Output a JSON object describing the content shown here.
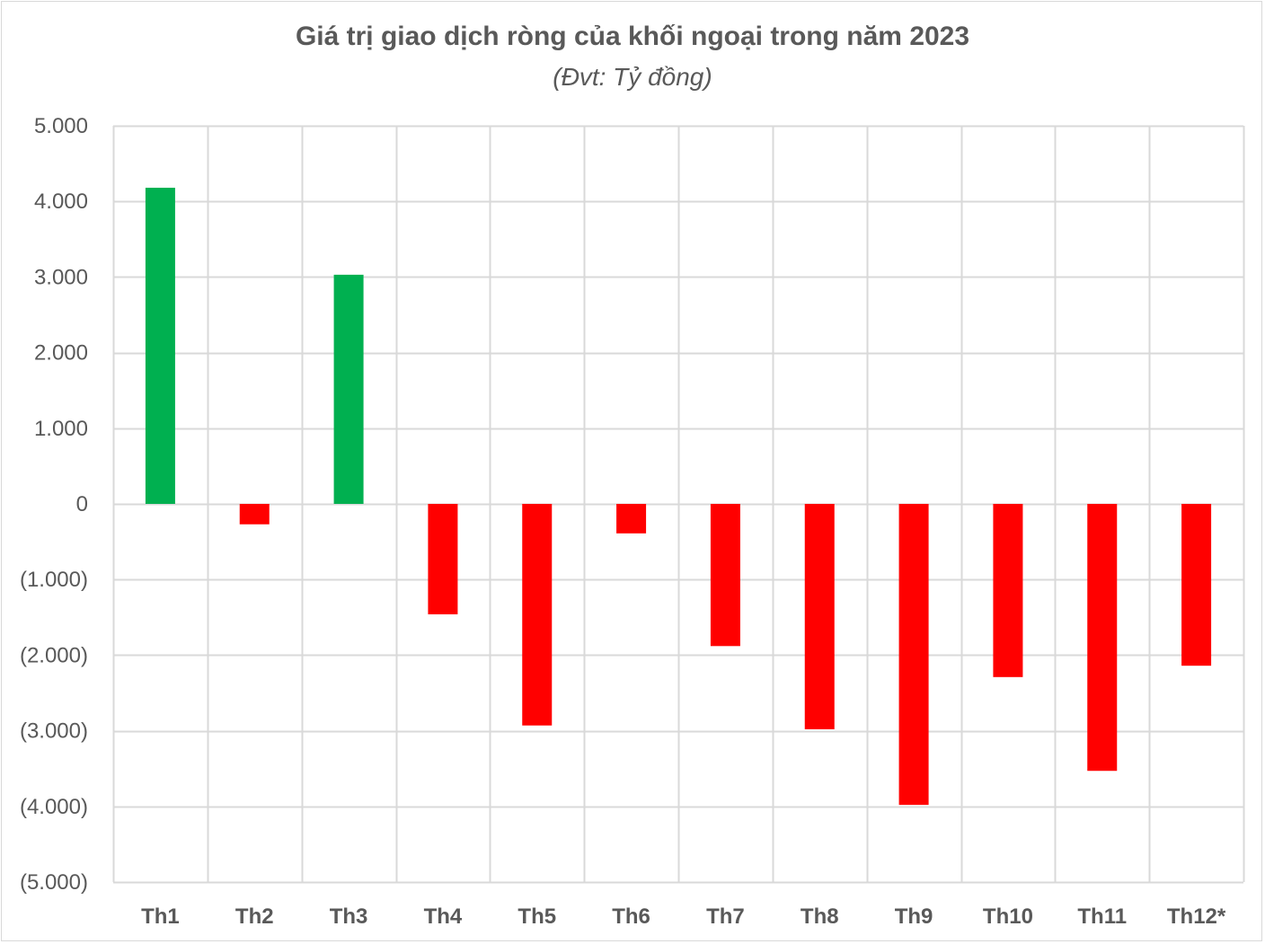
{
  "chart_data": {
    "type": "bar",
    "title": "Giá trị giao dịch ròng của khối ngoại trong năm 2023",
    "subtitle": "(Đvt: Tỷ đồng)",
    "categories": [
      "Th1",
      "Th2",
      "Th3",
      "Th4",
      "Th5",
      "Th6",
      "Th7",
      "Th8",
      "Th9",
      "Th10",
      "Th11",
      "Th12*"
    ],
    "values": [
      4180,
      -270,
      3030,
      -1460,
      -2930,
      -390,
      -1880,
      -2980,
      -3980,
      -2290,
      -3530,
      -2140
    ],
    "ylim": [
      -5000,
      5000
    ],
    "yticks": [
      5000,
      4000,
      3000,
      2000,
      1000,
      0,
      -1000,
      -2000,
      -3000,
      -4000,
      -5000
    ],
    "ytick_labels": [
      "5.000",
      "4.000",
      "3.000",
      "2.000",
      "1.000",
      "0",
      "(1.000)",
      "(2.000)",
      "(3.000)",
      "(4.000)",
      "(5.000)"
    ],
    "grid": true,
    "colors": {
      "positive": "#00b050",
      "negative": "#ff0000",
      "grid": "#d9d9d9",
      "text": "#595959"
    }
  }
}
